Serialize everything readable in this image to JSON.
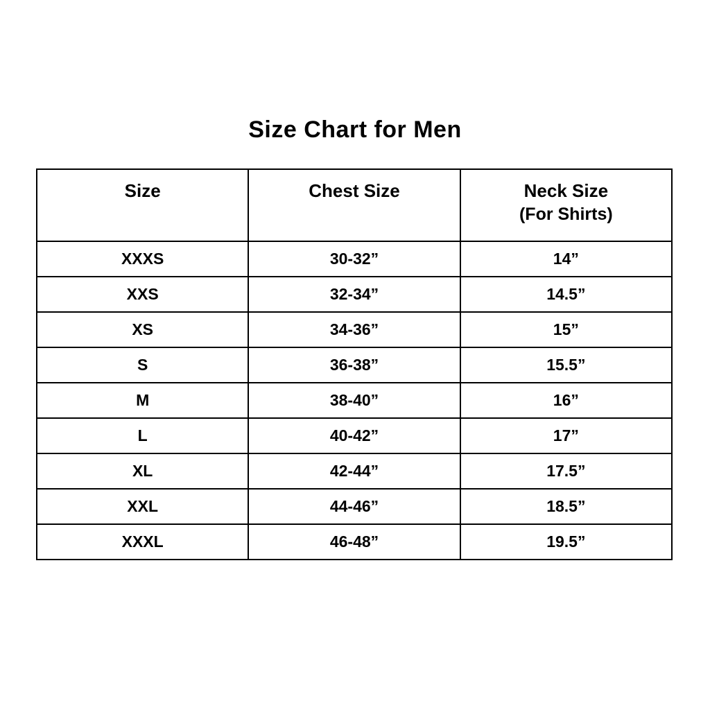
{
  "title": "Size Chart for Men",
  "colors": {
    "text": "#000000",
    "background": "#ffffff",
    "border": "#000000"
  },
  "chart_data": {
    "type": "table",
    "title": "Size Chart for Men",
    "columns": [
      {
        "label": "Size",
        "sublabel": ""
      },
      {
        "label": "Chest Size",
        "sublabel": ""
      },
      {
        "label": "Neck Size",
        "sublabel": "(For Shirts)"
      }
    ],
    "rows": [
      {
        "size": "XXXS",
        "chest": "30-32”",
        "neck": "14”"
      },
      {
        "size": "XXS",
        "chest": "32-34”",
        "neck": "14.5”"
      },
      {
        "size": "XS",
        "chest": "34-36”",
        "neck": "15”"
      },
      {
        "size": "S",
        "chest": "36-38”",
        "neck": "15.5”"
      },
      {
        "size": "M",
        "chest": "38-40”",
        "neck": "16”"
      },
      {
        "size": "L",
        "chest": "40-42”",
        "neck": "17”"
      },
      {
        "size": "XL",
        "chest": "42-44”",
        "neck": "17.5”"
      },
      {
        "size": "XXL",
        "chest": "44-46”",
        "neck": "18.5”"
      },
      {
        "size": "XXXL",
        "chest": "46-48”",
        "neck": "19.5”"
      }
    ]
  }
}
